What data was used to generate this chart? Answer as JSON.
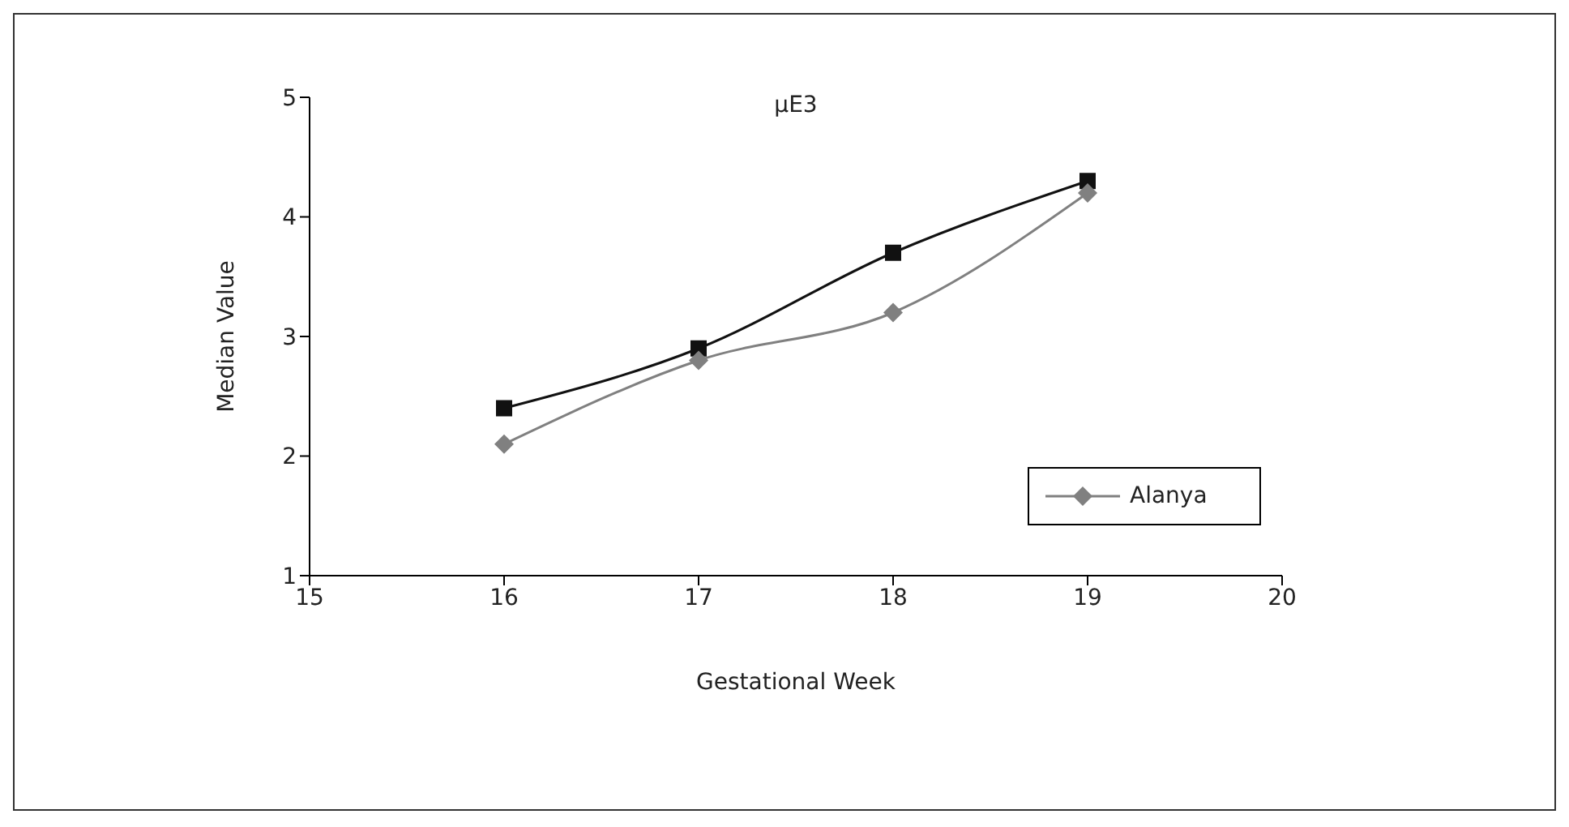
{
  "chart_data": {
    "type": "line",
    "title": "μE3",
    "xlabel": "Gestational Week",
    "ylabel": "Median Value",
    "x": [
      16,
      17,
      18,
      19
    ],
    "series": [
      {
        "color": "#111111",
        "marker": "square",
        "values": [
          2.4,
          2.9,
          3.7,
          4.3
        ]
      },
      {
        "name": "Alanya",
        "color": "#808080",
        "marker": "diamond",
        "values": [
          2.1,
          2.8,
          3.2,
          4.2
        ]
      }
    ],
    "xlim": [
      15,
      20
    ],
    "xticks": [
      15,
      16,
      17,
      18,
      19,
      20
    ],
    "ylim": [
      1,
      5
    ],
    "yticks": [
      1,
      2,
      3,
      4,
      5
    ],
    "grid": false,
    "legend": "bottom right"
  }
}
